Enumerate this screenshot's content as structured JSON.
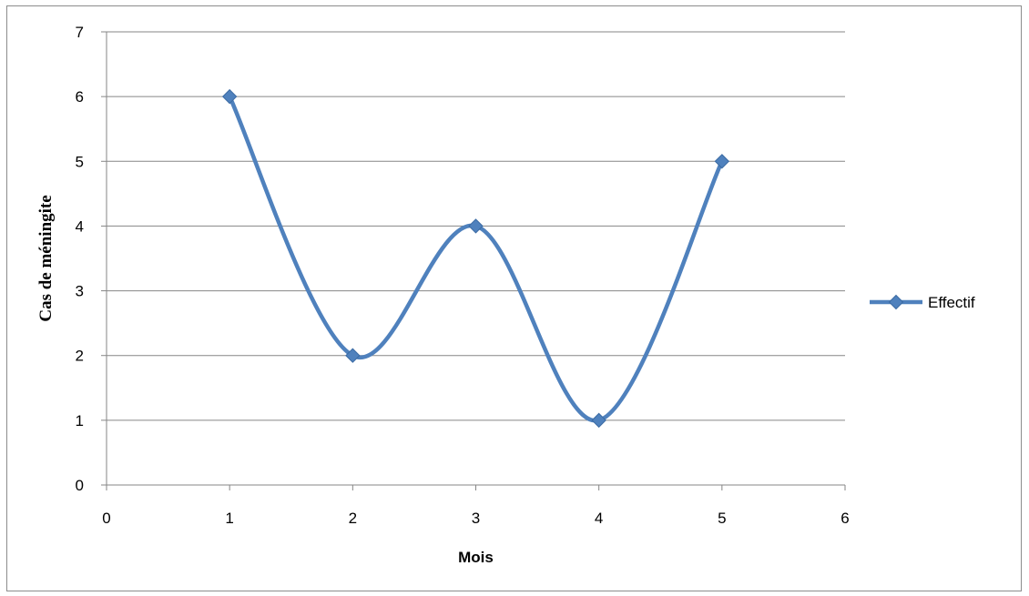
{
  "chart_data": {
    "type": "line",
    "smooth": true,
    "title": "",
    "xlabel": "Mois",
    "ylabel": "Cas de méningite",
    "xlim": [
      0,
      6
    ],
    "ylim": [
      0,
      7
    ],
    "x_ticks": [
      "0",
      "1",
      "2",
      "3",
      "4",
      "5",
      "6"
    ],
    "y_ticks": [
      "0",
      "1",
      "2",
      "3",
      "4",
      "5",
      "6",
      "7"
    ],
    "grid": "horizontal",
    "legend_position": "right",
    "series": [
      {
        "name": "Effectif",
        "color": "#4F81BD",
        "marker": "diamond",
        "x": [
          1,
          2,
          3,
          4,
          5
        ],
        "y": [
          6,
          2,
          4,
          1,
          5
        ]
      }
    ]
  }
}
